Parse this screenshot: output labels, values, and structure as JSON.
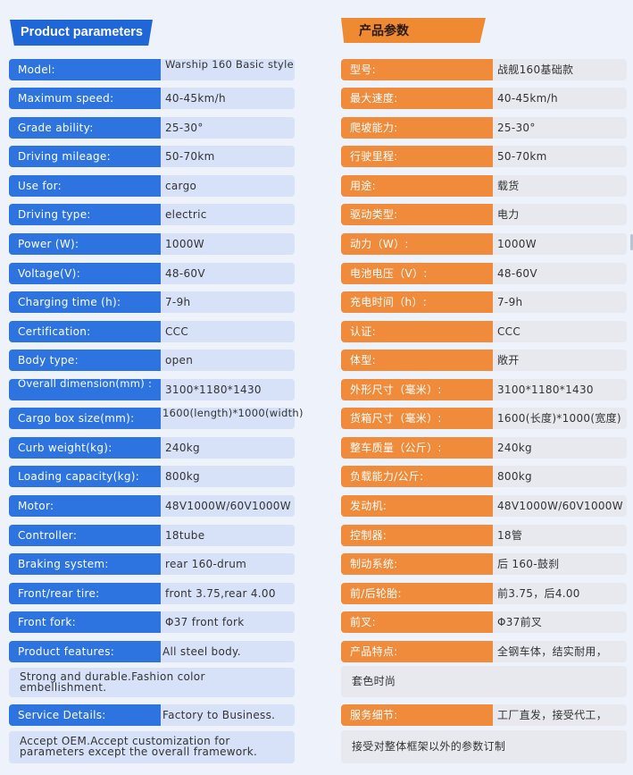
{
  "left": {
    "header": "Product parameters",
    "rows": [
      {
        "label": "Model:",
        "value": "Warship 160 Basic style"
      },
      {
        "label": "Maximum speed:",
        "value": "40-45km/h"
      },
      {
        "label": "Grade ability:",
        "value": "25-30°"
      },
      {
        "label": "Driving mileage:",
        "value": "50-70km"
      },
      {
        "label": "Use for:",
        "value": "cargo"
      },
      {
        "label": "Driving type:",
        "value": "electric"
      },
      {
        "label": "Power (W):",
        "value": "1000W"
      },
      {
        "label": "Voltage(V):",
        "value": "48-60V"
      },
      {
        "label": "Charging time (h):",
        "value": "7-9h"
      },
      {
        "label": "Certification:",
        "value": "CCC"
      },
      {
        "label": "Body type:",
        "value": "open"
      },
      {
        "label": "Overall dimension(mm) :",
        "value": "3100*1180*1430"
      },
      {
        "label": "Cargo box size(mm):",
        "value": "1600(length)*1000(width)"
      },
      {
        "label": "Curb weight(kg):",
        "value": "240kg"
      },
      {
        "label": "Loading capacity(kg):",
        "value": "800kg"
      },
      {
        "label": "Motor:",
        "value": "48V1000W/60V1000W"
      },
      {
        "label": "Controller:",
        "value": "18tube"
      },
      {
        "label": "Braking system:",
        "value": "rear 160-drum"
      },
      {
        "label": "Front/rear tire:",
        "value": "front 3.75,rear 4.00"
      },
      {
        "label": "Front fork:",
        "value": "Φ37 front fork"
      },
      {
        "label": "Product features:",
        "value": "All steel body."
      }
    ],
    "features_cont": "Strong and durable.Fashion color embellishment.",
    "service_label": "Service Details:",
    "service_value": "Factory to Business.",
    "service_cont": "Accept OEM.Accept customization for parameters except the overall framework."
  },
  "right": {
    "header": "产品参数",
    "rows": [
      {
        "label": "型号:",
        "value": "战舰160基础款"
      },
      {
        "label": "最大速度:",
        "value": "40-45km/h"
      },
      {
        "label": "爬坡能力:",
        "value": "25-30°"
      },
      {
        "label": "行驶里程:",
        "value": "50-70km"
      },
      {
        "label": "用途:",
        "value": "载货"
      },
      {
        "label": "驱动类型:",
        "value": "电力"
      },
      {
        "label": "动力（W）:",
        "value": "1000W"
      },
      {
        "label": "电池电压（V）:",
        "value": "48-60V"
      },
      {
        "label": "充电时间（h）:",
        "value": "7-9h"
      },
      {
        "label": "认证:",
        "value": "CCC"
      },
      {
        "label": "体型:",
        "value": "敞开"
      },
      {
        "label": "外形尺寸（毫米）:",
        "value": "3100*1180*1430"
      },
      {
        "label": "货箱尺寸（毫米）:",
        "value": "1600(长度)*1000(宽度)"
      },
      {
        "label": "整车质量（公斤）:",
        "value": "240kg"
      },
      {
        "label": "负载能力/公斤:",
        "value": "800kg"
      },
      {
        "label": "发动机:",
        "value": "48V1000W/60V1000W"
      },
      {
        "label": "控制器:",
        "value": "18管"
      },
      {
        "label": "制动系统:",
        "value": "后 160-鼓刹"
      },
      {
        "label": "前/后轮胎:",
        "value": "前3.75，后4.00"
      },
      {
        "label": "前叉:",
        "value": "Φ37前叉"
      },
      {
        "label": "产品特点:",
        "value": "全钢车体，结实耐用，"
      }
    ],
    "features_cont": "套色时尚",
    "service_label": "服务细节:",
    "service_value": "工厂直发，接受代工，",
    "service_cont": "接受对整体框架以外的参数订制"
  }
}
